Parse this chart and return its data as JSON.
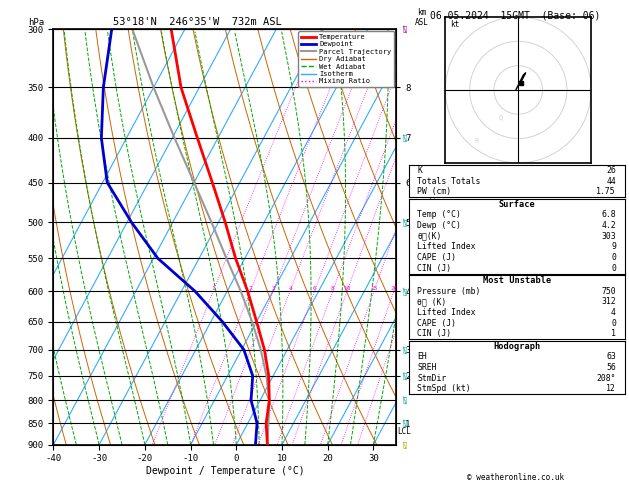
{
  "title_center": "53°18'N  246°35'W  732m ASL",
  "title_right": "06.05.2024  15GMT  (Base: 06)",
  "xlabel": "Dewpoint / Temperature (°C)",
  "pressure_levels": [
    300,
    350,
    400,
    450,
    500,
    550,
    600,
    650,
    700,
    750,
    800,
    850,
    900
  ],
  "pressure_min": 300,
  "pressure_max": 900,
  "temp_min": -40,
  "temp_max": 35,
  "skew_factor": 0.65,
  "temp_profile_p": [
    900,
    850,
    800,
    750,
    700,
    650,
    600,
    550,
    500,
    450,
    400,
    350,
    300
  ],
  "temp_profile_t": [
    6.8,
    4.0,
    2.0,
    -1.0,
    -5.0,
    -10.0,
    -15.5,
    -22.0,
    -28.5,
    -36.0,
    -44.5,
    -54.0,
    -63.0
  ],
  "dewp_profile_p": [
    900,
    850,
    800,
    750,
    700,
    650,
    600,
    550,
    500,
    450,
    400,
    350,
    300
  ],
  "dewp_profile_t": [
    4.2,
    2.0,
    -2.0,
    -4.5,
    -9.5,
    -17.5,
    -27.0,
    -39.0,
    -49.0,
    -59.0,
    -65.5,
    -71.0,
    -76.0
  ],
  "parcel_p": [
    900,
    850,
    800,
    750,
    700,
    650,
    600,
    550,
    500,
    450,
    400,
    350,
    300
  ],
  "parcel_t": [
    6.8,
    4.5,
    2.0,
    -1.5,
    -5.8,
    -11.0,
    -17.0,
    -24.0,
    -31.5,
    -40.0,
    -49.5,
    -60.0,
    -71.5
  ],
  "lcl_pressure": 870,
  "color_temp": "#ff0000",
  "color_dewp": "#0000cc",
  "color_parcel": "#999999",
  "color_dry_adiabat": "#cc6600",
  "color_wet_adiabat": "#00aa00",
  "color_isotherm": "#33aaff",
  "color_mixing": "#ff00ff",
  "mixing_ratios": [
    1,
    2,
    3,
    4,
    6,
    8,
    10,
    15,
    20,
    25
  ],
  "km_ticks_p": [
    350,
    400,
    450,
    500,
    600,
    700,
    750,
    850
  ],
  "km_ticks_v": [
    "8",
    "7",
    "6",
    "5",
    "4",
    "3",
    "2",
    "1"
  ],
  "wind_barb_p": [
    300,
    400,
    500,
    600,
    700,
    750,
    800,
    850,
    900
  ],
  "wind_barb_colors": [
    "#aa00aa",
    "#00aaaa",
    "#00aaaa",
    "#00aaaa",
    "#00aaaa",
    "#00aaaa",
    "#00aaaa",
    "#00aaaa",
    "#aaaa00"
  ],
  "hodo_trace_u": [
    -1,
    0,
    1,
    2,
    3,
    2,
    1
  ],
  "hodo_trace_v": [
    0,
    2,
    4,
    6,
    7,
    5,
    3
  ],
  "hodo_gray_labels": [
    [
      "Q",
      -8,
      -12
    ],
    [
      "R",
      -18,
      -22
    ]
  ],
  "copyright": "© weatheronline.co.uk",
  "stats_k": 26,
  "stats_tt": 44,
  "stats_pw": 1.75,
  "surf_temp": 6.8,
  "surf_dewp": 4.2,
  "surf_theta_e": 303,
  "surf_li": 9,
  "surf_cape": 0,
  "surf_cin": 0,
  "mu_pres": 750,
  "mu_theta_e": 312,
  "mu_li": 4,
  "mu_cape": 0,
  "mu_cin": 1,
  "hodo_eh": 63,
  "hodo_sreh": 56,
  "hodo_stmdir": "208°",
  "hodo_stmspd": 12
}
